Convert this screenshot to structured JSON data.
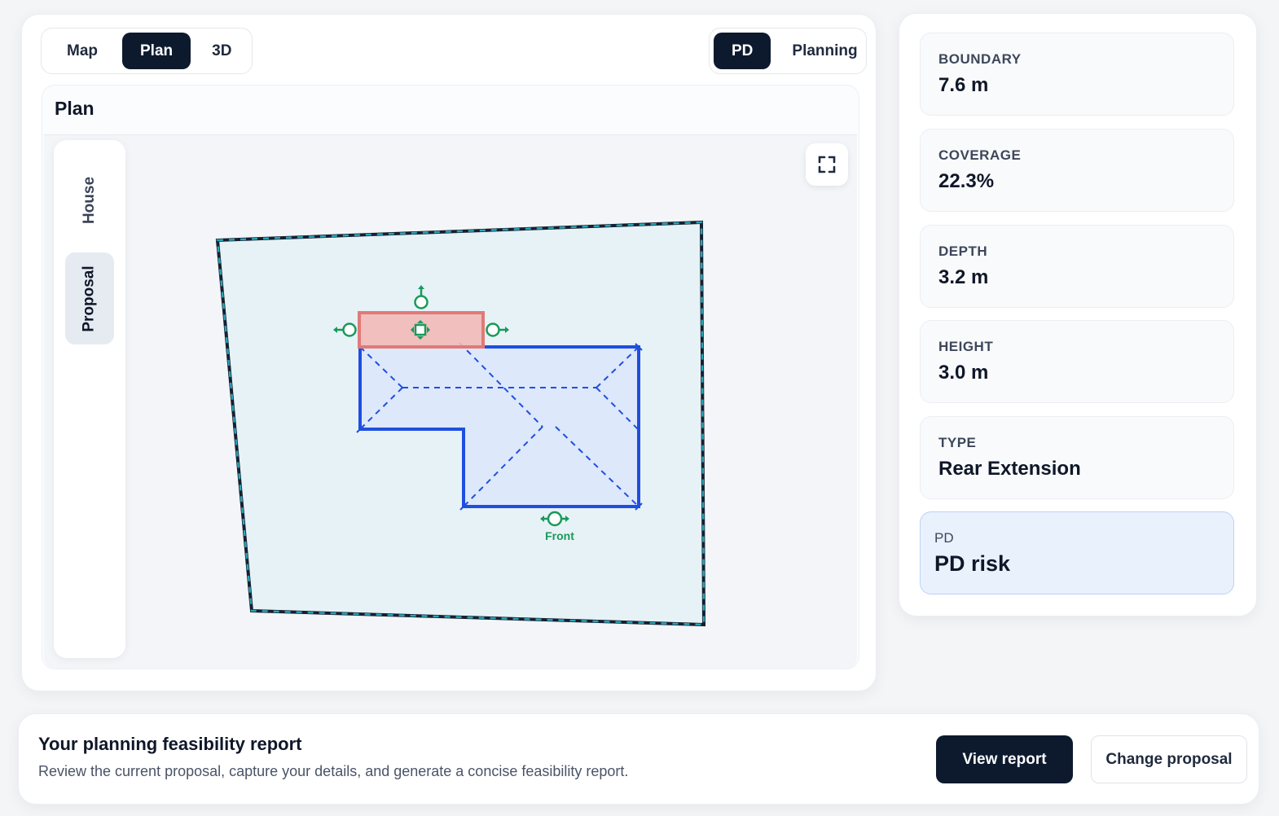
{
  "view_tabs": [
    {
      "label": "Map",
      "active": false
    },
    {
      "label": "Plan",
      "active": true
    },
    {
      "label": "3D",
      "active": false
    }
  ],
  "mode_tabs": [
    {
      "label": "PD",
      "active": true
    },
    {
      "label": "Planning",
      "active": false
    }
  ],
  "plan": {
    "title": "Plan",
    "side_tabs": [
      {
        "label": "House",
        "active": false
      },
      {
        "label": "Proposal",
        "active": true
      }
    ],
    "front_label": "Front",
    "fullscreen_icon": "fullscreen-icon"
  },
  "metrics": [
    {
      "label": "BOUNDARY",
      "value": "7.6 m"
    },
    {
      "label": "COVERAGE",
      "value": "22.3%"
    },
    {
      "label": "DEPTH",
      "value": "3.2 m"
    },
    {
      "label": "HEIGHT",
      "value": "3.0 m"
    },
    {
      "label": "TYPE",
      "value": "Rear Extension"
    },
    {
      "label": "PD",
      "value": "PD risk"
    }
  ],
  "report": {
    "title": "Your planning feasibility report",
    "description": "Review the current proposal, capture your details, and generate a concise feasibility report.",
    "view_label": "View report",
    "change_label": "Change proposal"
  },
  "colors": {
    "accent_dark": "#0d1a2e",
    "house_blue": "#1f4fe0",
    "proposal_red": "#e07a78",
    "handle_green": "#1a9a5a",
    "boundary_teal": "#1a8aa0"
  }
}
